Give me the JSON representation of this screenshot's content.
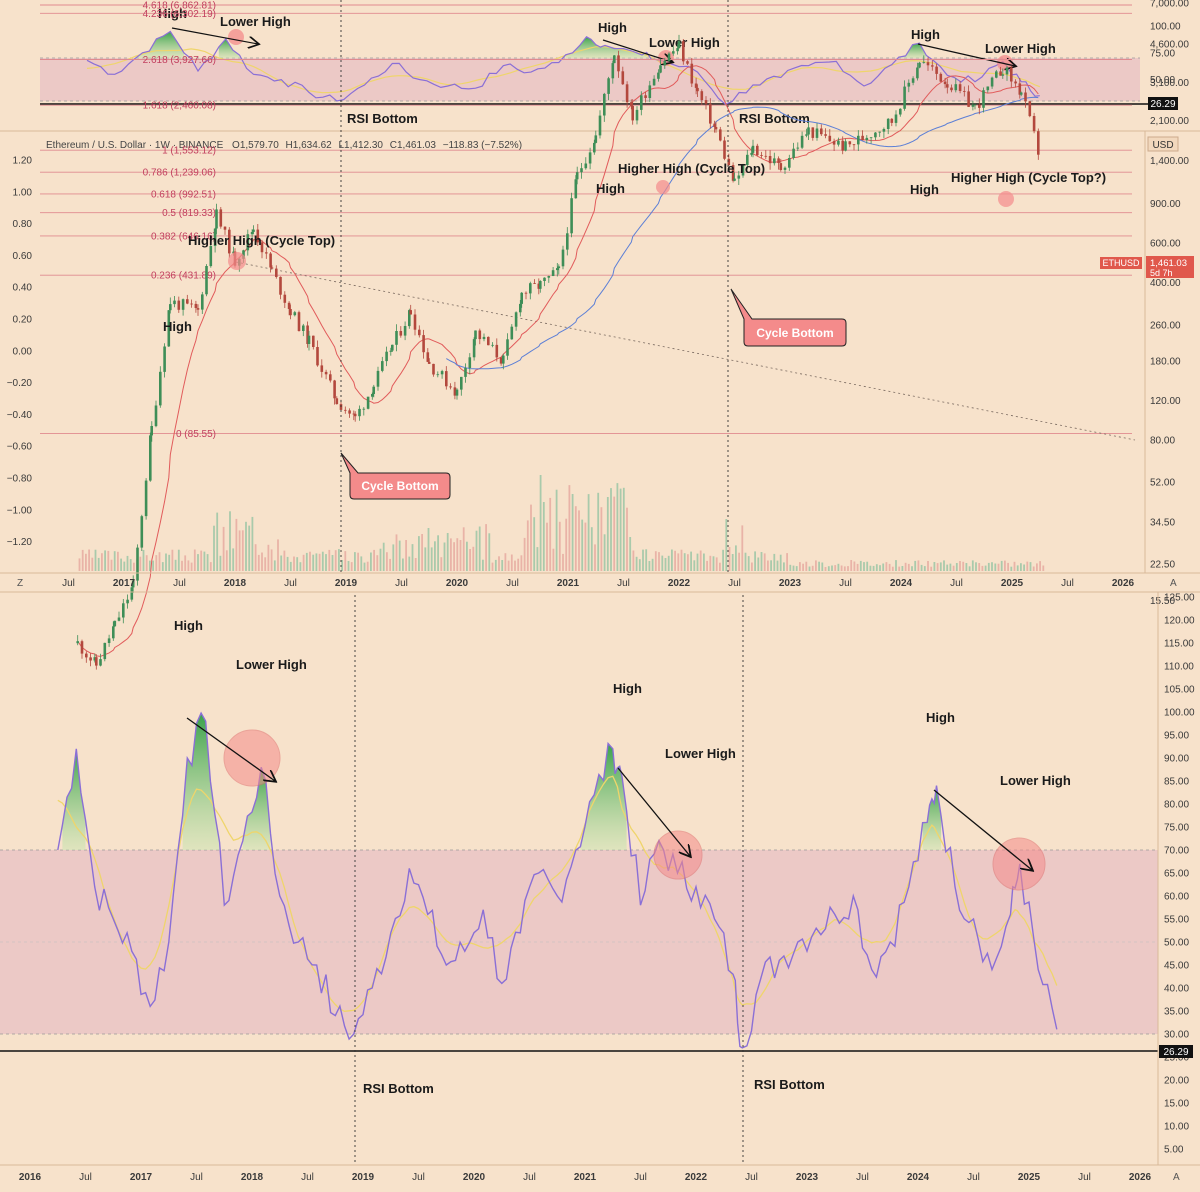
{
  "chart_header": {
    "symbol": "Ethereum / U.S. Dollar · 1W · BINANCE",
    "open": "O1,579.70",
    "high": "H1,634.62",
    "low": "L1,412.30",
    "close": "C1,461.03",
    "change": "−118.83 (−7.52%)",
    "currency": "USD",
    "ticker": "ETHUSD",
    "last_price": "1,461.03",
    "countdown": "5d 7h"
  },
  "chart_data": [
    {
      "type": "line",
      "panel": "rsi-mini",
      "ylim": [
        20,
        100
      ],
      "yticks": [
        "100.00",
        "75.00",
        "50.00"
      ],
      "floor_label": "26.29",
      "x": [
        "2016-09",
        "2016-12",
        "2017-03",
        "2017-06",
        "2017-09",
        "2017-12",
        "2018-03",
        "2018-06",
        "2018-09",
        "2018-12",
        "2019-03",
        "2019-06",
        "2019-09",
        "2019-12",
        "2020-03",
        "2020-06",
        "2020-09",
        "2020-12",
        "2021-03",
        "2021-05",
        "2021-09",
        "2021-11",
        "2022-03",
        "2022-06",
        "2022-09",
        "2022-12",
        "2023-03",
        "2023-06",
        "2023-09",
        "2023-12",
        "2024-03",
        "2024-06",
        "2024-09",
        "2024-12",
        "2025-02",
        "2025-04"
      ],
      "values": [
        68,
        55,
        75,
        95,
        58,
        88,
        55,
        50,
        38,
        30,
        45,
        65,
        50,
        44,
        42,
        63,
        57,
        66,
        90,
        82,
        73,
        68,
        57,
        27,
        45,
        52,
        63,
        67,
        44,
        64,
        84,
        54,
        48,
        67,
        48,
        35
      ]
    },
    {
      "type": "candlestick",
      "panel": "price",
      "scale": "log",
      "series": [
        {
          "name": "ETHUSD",
          "values": [
            10,
            8,
            12,
            18,
            90,
            330,
            300,
            800,
            500,
            700,
            450,
            300,
            220,
            120,
            100,
            140,
            210,
            300,
            175,
            130,
            240,
            180,
            360,
            390,
            450,
            1200,
            1800,
            4200,
            2200,
            3800,
            4500,
            2800,
            1900,
            1100,
            1600,
            1300,
            1900,
            1600,
            2100,
            3900,
            3100,
            2400,
            3600,
            2800,
            1461
          ]
        }
      ],
      "x": [
        "2016-08",
        "2016-10",
        "2016-12",
        "2017-02",
        "2017-04",
        "2017-06",
        "2017-09",
        "2017-11",
        "2018-01",
        "2018-03",
        "2018-05",
        "2018-07",
        "2018-09",
        "2018-12",
        "2019-02",
        "2019-04",
        "2019-06",
        "2019-08",
        "2019-10",
        "2020-01",
        "2020-03",
        "2020-06",
        "2020-08",
        "2020-10",
        "2020-12",
        "2021-02",
        "2021-04",
        "2021-06",
        "2021-08",
        "2021-11",
        "2022-01",
        "2022-03",
        "2022-05",
        "2022-07",
        "2022-09",
        "2022-12",
        "2023-03",
        "2023-07",
        "2023-12",
        "2024-03",
        "2024-06",
        "2024-09",
        "2024-12",
        "2025-02",
        "2025-04"
      ],
      "fib_levels": [
        {
          "label": "4.618 (6,862.81)",
          "value": 6862.81
        },
        {
          "label": "4.236 (6,302.19)",
          "value": 6302.19
        },
        {
          "label": "2.618 (3,927.66)",
          "value": 3927.66
        },
        {
          "label": "1.618 (2,460.08)",
          "value": 2460.08
        },
        {
          "label": "1 (1,553.12)",
          "value": 1553.12
        },
        {
          "label": "0.786 (1,239.06)",
          "value": 1239.06
        },
        {
          "label": "0.618 (992.51)",
          "value": 992.51
        },
        {
          "label": "0.5 (819.33)",
          "value": 819.33
        },
        {
          "label": "0.382 (646.16)",
          "value": 646.16
        },
        {
          "label": "0.236 (431.89)",
          "value": 431.89
        },
        {
          "label": "0 (85.55)",
          "value": 85.55
        }
      ],
      "right_ticks": [
        "7,000.00",
        "4,600.00",
        "3,100.00",
        "2,100.00",
        "1,400.00",
        "900.00",
        "600.00",
        "400.00",
        "260.00",
        "180.00",
        "120.00",
        "80.00",
        "52.00",
        "34.50",
        "22.50",
        "15.50"
      ],
      "left_ticks": [
        "1.20",
        "1.00",
        "0.80",
        "0.60",
        "0.40",
        "0.20",
        "0.00",
        "−0.20",
        "−0.40",
        "−0.60",
        "−0.80",
        "−1.00",
        "−1.20"
      ],
      "x_ticks": [
        "Jul",
        "2017",
        "Jul",
        "2018",
        "Jul",
        "2019",
        "Jul",
        "2020",
        "Jul",
        "2021",
        "Jul",
        "2022",
        "Jul",
        "2023",
        "Jul",
        "2024",
        "Jul",
        "2025",
        "Jul",
        "2026"
      ],
      "annotations": {
        "higher_high_cycle_top_2018": "Higher High (Cycle Top)",
        "high_2017": "High",
        "high_2021": "High",
        "higher_high_cycle_top_2021": "Higher High (Cycle Top)",
        "high_2024": "High",
        "higher_high_cycle_top_q": "Higher High (Cycle Top?)",
        "cycle_bottom_2018": "Cycle Bottom",
        "cycle_bottom_2022": "Cycle Bottom"
      }
    },
    {
      "type": "line",
      "panel": "rsi",
      "ylim": [
        0,
        125
      ],
      "yticks": [
        "125.00",
        "120.00",
        "115.00",
        "110.00",
        "105.00",
        "100.00",
        "95.00",
        "90.00",
        "85.00",
        "80.00",
        "75.00",
        "70.00",
        "65.00",
        "60.00",
        "55.00",
        "50.00",
        "45.00",
        "40.00",
        "35.00",
        "30.00",
        "25.00",
        "20.00",
        "15.00",
        "10.00",
        "5.00"
      ],
      "floor_label": "26.29",
      "x_ticks": [
        "2016",
        "Jul",
        "2017",
        "Jul",
        "2018",
        "Jul",
        "2019",
        "Jul",
        "2020",
        "Jul",
        "2021",
        "Jul",
        "2022",
        "Jul",
        "2023",
        "Jul",
        "2024",
        "Jul",
        "2025",
        "Jul",
        "2026"
      ],
      "x": [
        "2016-04",
        "2016-06",
        "2016-08",
        "2016-10",
        "2016-12",
        "2017-02",
        "2017-04",
        "2017-06",
        "2017-08",
        "2017-10",
        "2017-12",
        "2018-02",
        "2018-04",
        "2018-06",
        "2018-08",
        "2018-10",
        "2018-12",
        "2019-02",
        "2019-04",
        "2019-06",
        "2019-08",
        "2019-10",
        "2019-12",
        "2020-02",
        "2020-04",
        "2020-06",
        "2020-08",
        "2020-10",
        "2020-12",
        "2021-02",
        "2021-04",
        "2021-05",
        "2021-07",
        "2021-09",
        "2021-11",
        "2022-01",
        "2022-03",
        "2022-05",
        "2022-06",
        "2022-08",
        "2022-10",
        "2022-12",
        "2023-02",
        "2023-04",
        "2023-06",
        "2023-08",
        "2023-10",
        "2023-12",
        "2024-02",
        "2024-03",
        "2024-05",
        "2024-07",
        "2024-09",
        "2024-11",
        "2024-12",
        "2025-02",
        "2025-04"
      ],
      "values": [
        70,
        92,
        62,
        55,
        48,
        36,
        50,
        90,
        98,
        58,
        72,
        88,
        60,
        50,
        45,
        34,
        30,
        40,
        52,
        66,
        56,
        45,
        48,
        57,
        41,
        52,
        65,
        60,
        70,
        82,
        92,
        86,
        58,
        72,
        65,
        62,
        55,
        43,
        27,
        42,
        46,
        50,
        53,
        56,
        60,
        44,
        50,
        62,
        76,
        84,
        62,
        55,
        44,
        56,
        67,
        44,
        31
      ],
      "annotations": {
        "high_2017": "High",
        "lower_high_2018": "Lower High",
        "high_2021": "High",
        "lower_high_2021": "Lower High",
        "high_2024": "High",
        "lower_high_2024": "Lower High",
        "rsi_bottom_2018": "RSI Bottom",
        "rsi_bottom_2022": "RSI Bottom"
      }
    }
  ],
  "mini_annotations": {
    "high_2017": "High",
    "lower_high_2018": "Lower High",
    "high_2021": "High",
    "lower_high_2021": "Lower High",
    "high_2024": "High",
    "lower_high_2024": "Lower High",
    "rsi_bottom_2018": "RSI Bottom",
    "rsi_bottom_2022": "RSI Bottom"
  },
  "colors": {
    "background": "#f7e2cb",
    "rsi_line": "#8a6fd6",
    "signal_line": "#efd56b",
    "band": "#ecc9c6",
    "fib_line": "#e08a8f",
    "ma_red": "#e15b5b",
    "ma_blue": "#5c7fd6",
    "up": "#3e8e57",
    "down": "#b3483d",
    "callout": "#f48b8b"
  }
}
